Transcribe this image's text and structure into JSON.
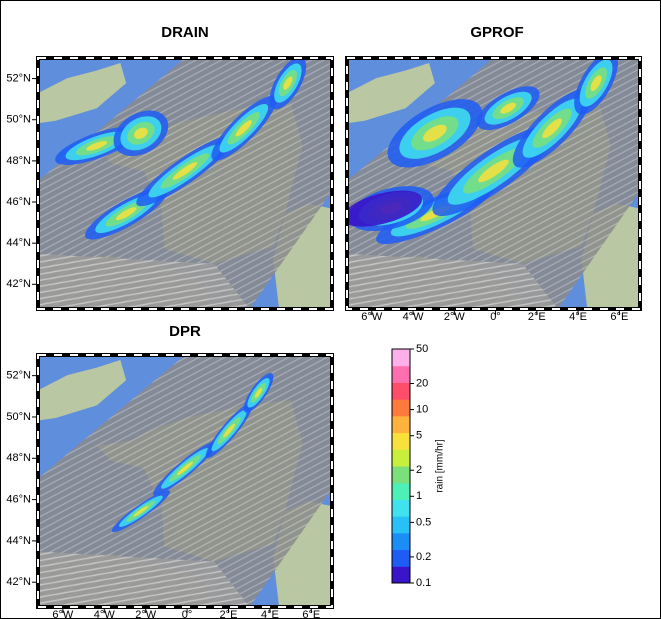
{
  "panels": [
    {
      "title": "DRAIN",
      "xlim": [
        -7.2,
        7
      ],
      "ylim": [
        40.8,
        53
      ],
      "yticks": [
        {
          "value": 42,
          "label": "42°N"
        },
        {
          "value": 44,
          "label": "44°N"
        },
        {
          "value": 46,
          "label": "46°N"
        },
        {
          "value": 48,
          "label": "48°N"
        },
        {
          "value": 50,
          "label": "50°N"
        },
        {
          "value": 52,
          "label": "52°N"
        }
      ],
      "xticks": []
    },
    {
      "title": "GPROF",
      "xlim": [
        -7.2,
        7
      ],
      "ylim": [
        40.8,
        53
      ],
      "yticks": [],
      "xticks": [
        {
          "value": -6,
          "label": "6°W"
        },
        {
          "value": -4,
          "label": "4°W"
        },
        {
          "value": -2,
          "label": "2°W"
        },
        {
          "value": 0,
          "label": "0°"
        },
        {
          "value": 2,
          "label": "2°E"
        },
        {
          "value": 4,
          "label": "4°E"
        },
        {
          "value": 6,
          "label": "6°E"
        }
      ]
    },
    {
      "title": "DPR",
      "xlim": [
        -7.2,
        7
      ],
      "ylim": [
        40.8,
        53
      ],
      "yticks": [
        {
          "value": 42,
          "label": "42°N"
        },
        {
          "value": 44,
          "label": "44°N"
        },
        {
          "value": 46,
          "label": "46°N"
        },
        {
          "value": 48,
          "label": "48°N"
        },
        {
          "value": 50,
          "label": "50°N"
        },
        {
          "value": 52,
          "label": "52°N"
        }
      ],
      "xticks": [
        {
          "value": -6,
          "label": "6°W"
        },
        {
          "value": -4,
          "label": "4°W"
        },
        {
          "value": -2,
          "label": "2°W"
        },
        {
          "value": 0,
          "label": "0°"
        },
        {
          "value": 2,
          "label": "2°E"
        },
        {
          "value": 4,
          "label": "4°E"
        },
        {
          "value": 6,
          "label": "6°E"
        }
      ]
    }
  ],
  "colorbar": {
    "label": "rain [mm/hr]",
    "lim": [
      0.1,
      50
    ],
    "log": true,
    "ticks": [
      0.1,
      0.2,
      0.5,
      1,
      2,
      5,
      10,
      20,
      50
    ]
  }
}
